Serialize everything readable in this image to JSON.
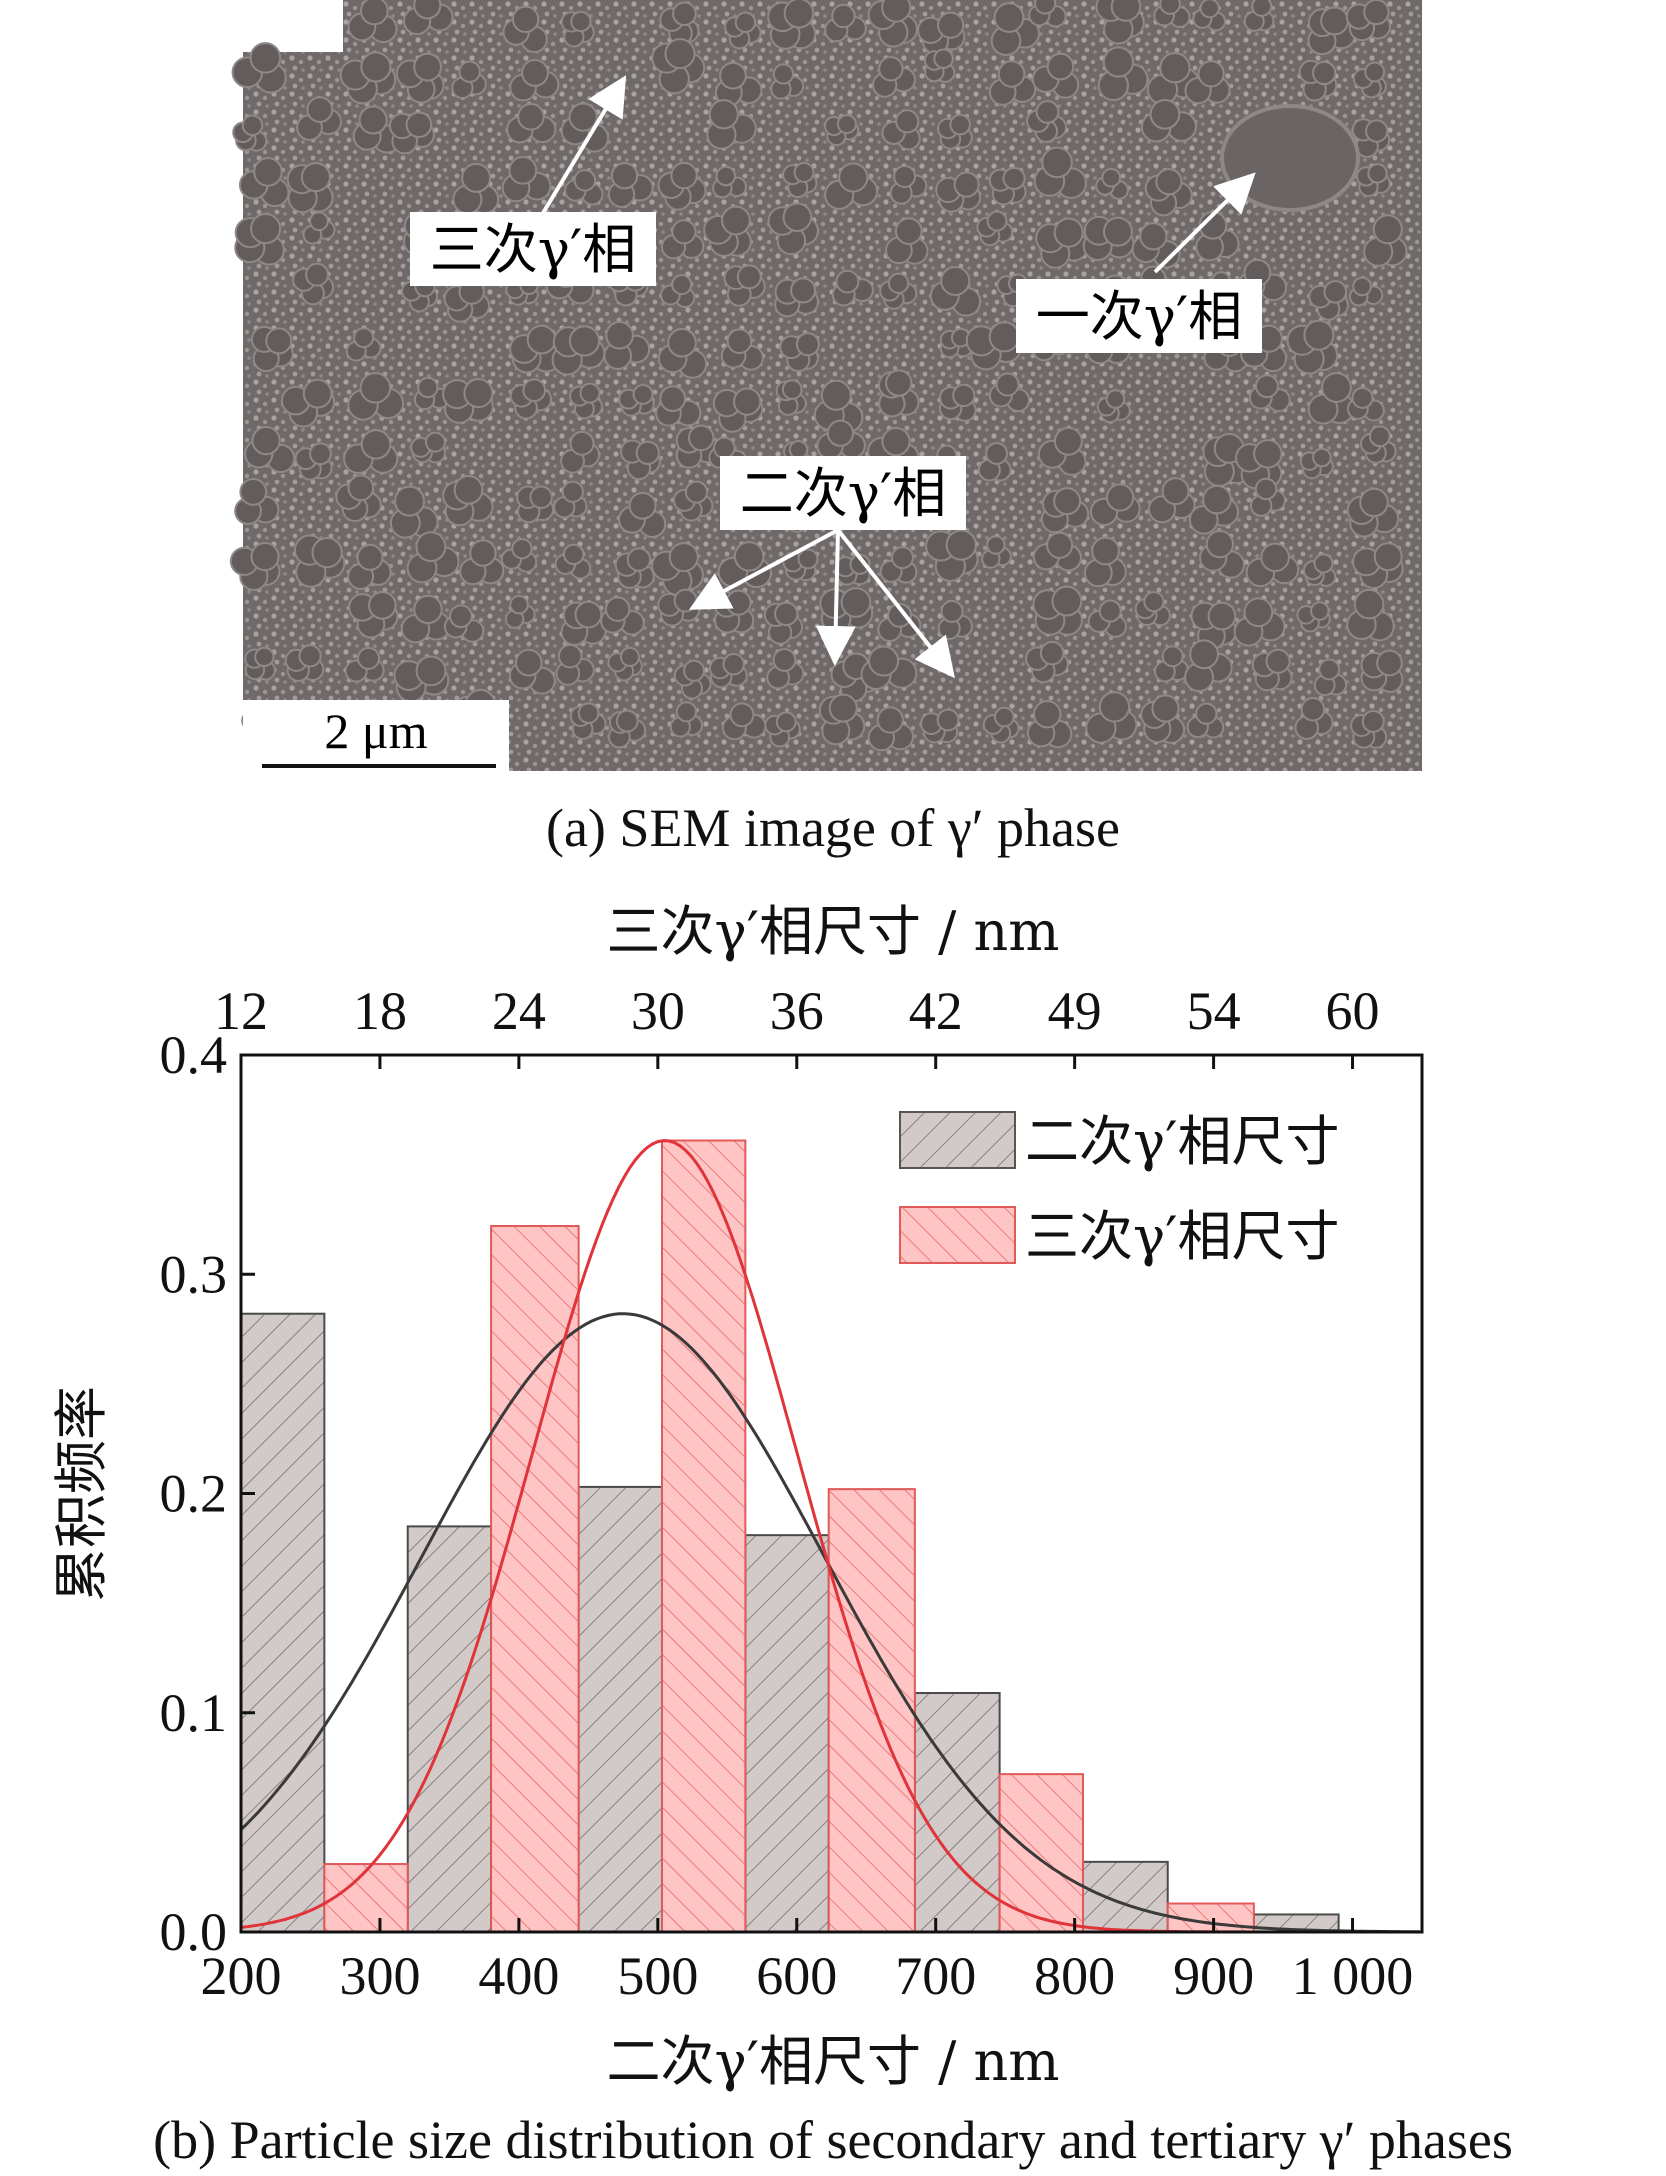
{
  "figure_a": {
    "caption": "(a) SEM image of γ′ phase",
    "scale_bar": "2 μm",
    "labels": {
      "tertiary": "三次γ′相",
      "primary": "一次γ′相",
      "secondary": "二次γ′相"
    }
  },
  "figure_b": {
    "caption": "(b) Particle size distribution of secondary and tertiary γ′ phases"
  },
  "chart_data": {
    "type": "bar",
    "title": "",
    "xlabel": "二次γ′相尺寸 / nm",
    "x2label": "三次γ′相尺寸 / nm",
    "ylabel": "累积频率",
    "xlim": [
      200,
      1050
    ],
    "ylim": [
      0,
      0.4
    ],
    "x_ticks": [
      "200",
      "300",
      "400",
      "500",
      "600",
      "700",
      "800",
      "900",
      "1 000"
    ],
    "x_tick_values": [
      200,
      300,
      400,
      500,
      600,
      700,
      800,
      900,
      1000
    ],
    "x2_ticks": [
      "12",
      "18",
      "24",
      "30",
      "36",
      "42",
      "49",
      "54",
      "60"
    ],
    "y_ticks": [
      "0.0",
      "0.1",
      "0.2",
      "0.3",
      "0.4"
    ],
    "y_tick_values": [
      0,
      0.1,
      0.2,
      0.3,
      0.4
    ],
    "legend_position": "top-right",
    "series": [
      {
        "name": "二次γ′相尺寸",
        "color": "#d2cac8",
        "edge": "#4a4a4a",
        "bins": [
          {
            "x0": 200,
            "x1": 260,
            "value": 0.282
          },
          {
            "x0": 320,
            "x1": 380,
            "value": 0.185
          },
          {
            "x0": 380,
            "x1": 443,
            "value": 0.185
          },
          {
            "x0": 443,
            "x1": 503,
            "value": 0.203
          },
          {
            "x0": 563,
            "x1": 623,
            "value": 0.181
          },
          {
            "x0": 685,
            "x1": 746,
            "value": 0.109
          },
          {
            "x0": 806,
            "x1": 867,
            "value": 0.032
          },
          {
            "x0": 929,
            "x1": 990,
            "value": 0.008
          }
        ],
        "fit": {
          "type": "normal",
          "mean": 475,
          "peak": 0.282,
          "sigma": 145
        }
      },
      {
        "name": "三次γ′相尺寸",
        "color": "#ffc2c2",
        "edge": "#e05a5a",
        "bins": [
          {
            "x0": 260,
            "x1": 320,
            "value": 0.031
          },
          {
            "x0": 380,
            "x1": 443,
            "value": 0.322
          },
          {
            "x0": 503,
            "x1": 563,
            "value": 0.361
          },
          {
            "x0": 623,
            "x1": 685,
            "value": 0.202
          },
          {
            "x0": 746,
            "x1": 806,
            "value": 0.072
          },
          {
            "x0": 867,
            "x1": 929,
            "value": 0.013
          }
        ],
        "fit": {
          "type": "normal",
          "mean": 505,
          "peak": 0.361,
          "sigma": 95
        }
      }
    ]
  }
}
